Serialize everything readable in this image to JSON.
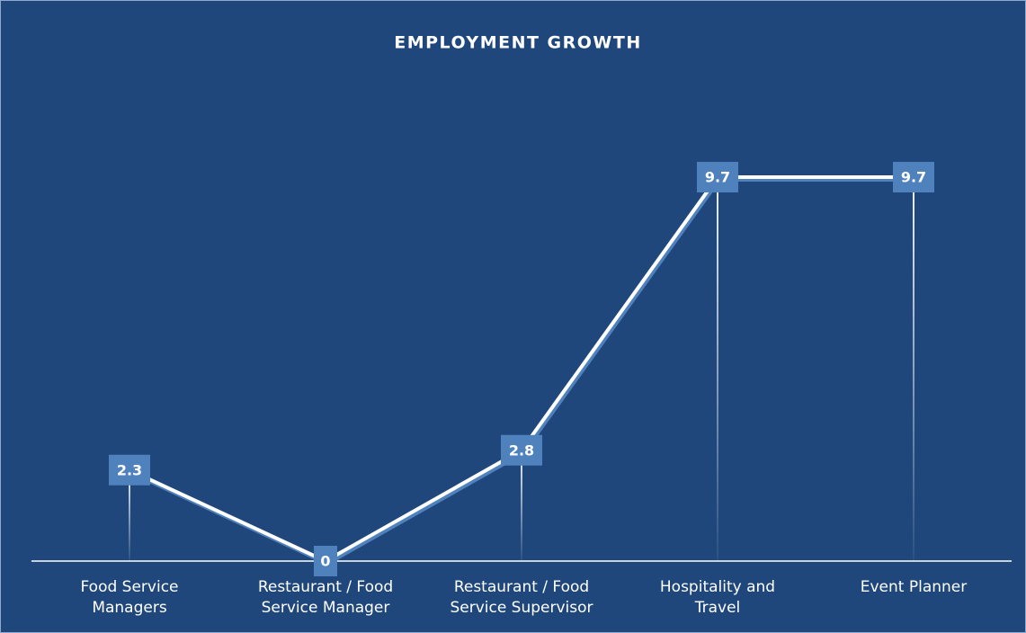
{
  "chart_data": {
    "type": "line",
    "title": "EMPLOYMENT GROWTH",
    "categories": [
      "Food Service Managers",
      "Restaurant / Food Service Manager",
      "Restaurant / Food Service Supervisor",
      "Hospitality and Travel",
      "Event Planner"
    ],
    "values": [
      2.3,
      0,
      2.8,
      9.7,
      9.7
    ],
    "color": "#ffffff",
    "label_color": "#4f81bd",
    "ylim": [
      0,
      11.2
    ],
    "grid": false
  }
}
